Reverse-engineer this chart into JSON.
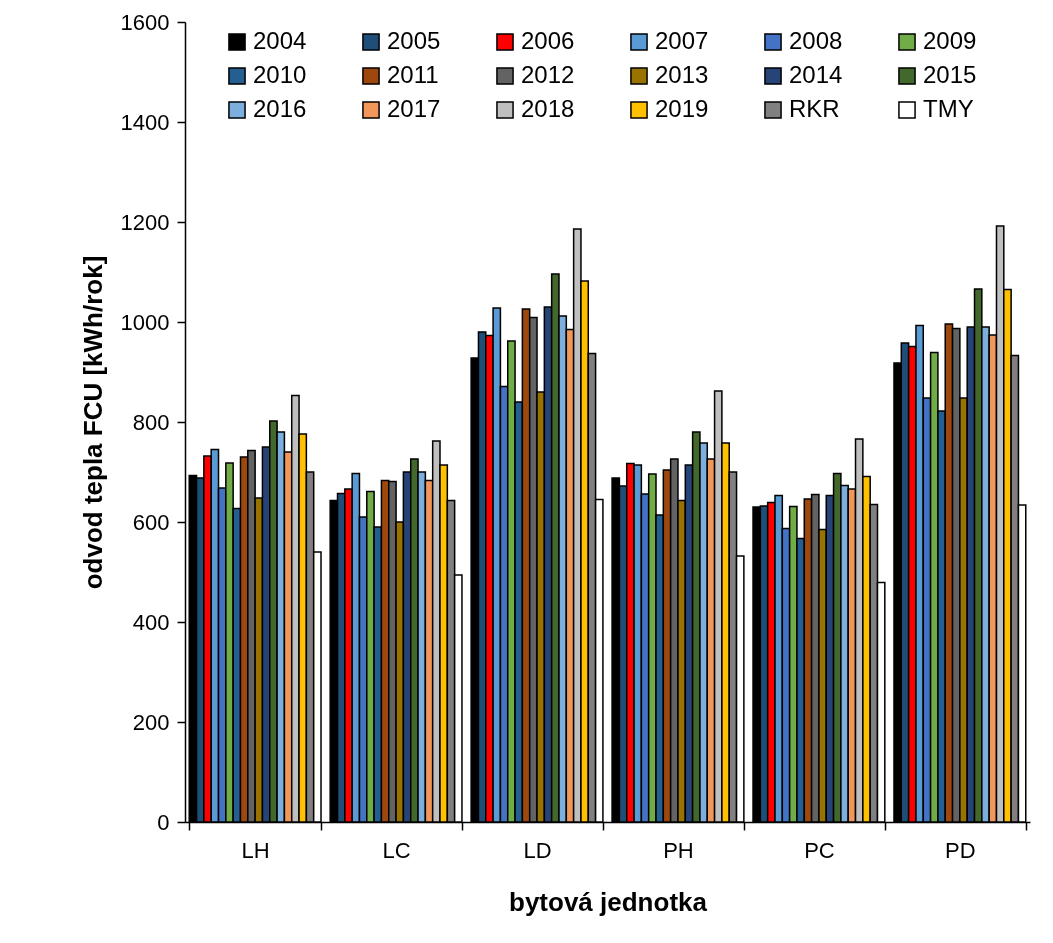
{
  "chart_data": {
    "type": "bar",
    "xlabel": "bytová jednotka",
    "ylabel": "odvod tepla FCU [kWh/rok]",
    "categories": [
      "LH",
      "LC",
      "LD",
      "PH",
      "PC",
      "PD"
    ],
    "ylim": [
      0,
      1600
    ],
    "yticks": [
      0,
      200,
      400,
      600,
      800,
      1000,
      1200,
      1400,
      1600
    ],
    "grid": false,
    "legend": "top",
    "series": [
      {
        "name": "2004",
        "color": "#000000",
        "values": [
          693,
          643,
          928,
          688,
          630,
          918
        ]
      },
      {
        "name": "2005",
        "color": "#1f4e79",
        "values": [
          688,
          657,
          980,
          672,
          632,
          958
        ]
      },
      {
        "name": "2006",
        "color": "#ff0000",
        "values": [
          732,
          666,
          973,
          717,
          639,
          951
        ]
      },
      {
        "name": "2007",
        "color": "#5b9bd5",
        "values": [
          745,
          697,
          1028,
          714,
          653,
          993
        ]
      },
      {
        "name": "2008",
        "color": "#4472c4",
        "values": [
          668,
          610,
          871,
          656,
          587,
          848
        ]
      },
      {
        "name": "2009",
        "color": "#70ad47",
        "values": [
          718,
          661,
          962,
          696,
          631,
          939
        ]
      },
      {
        "name": "2010",
        "color": "#255e91",
        "values": [
          627,
          590,
          840,
          614,
          567,
          822
        ]
      },
      {
        "name": "2011",
        "color": "#9e480e",
        "values": [
          730,
          683,
          1026,
          704,
          646,
          996
        ]
      },
      {
        "name": "2012",
        "color": "#636363",
        "values": [
          743,
          681,
          1009,
          726,
          655,
          987
        ]
      },
      {
        "name": "2013",
        "color": "#997300",
        "values": [
          648,
          600,
          860,
          643,
          585,
          848
        ]
      },
      {
        "name": "2014",
        "color": "#264478",
        "values": [
          750,
          700,
          1030,
          714,
          653,
          990
        ]
      },
      {
        "name": "2015",
        "color": "#43682b",
        "values": [
          802,
          726,
          1096,
          780,
          697,
          1066
        ]
      },
      {
        "name": "2016",
        "color": "#7cafdd",
        "values": [
          780,
          700,
          1012,
          758,
          673,
          990
        ]
      },
      {
        "name": "2017",
        "color": "#f1975a",
        "values": [
          740,
          683,
          985,
          726,
          666,
          974
        ]
      },
      {
        "name": "2018",
        "color": "#bfbfbf",
        "values": [
          853,
          762,
          1186,
          862,
          766,
          1192
        ]
      },
      {
        "name": "2019",
        "color": "#ffc000",
        "values": [
          776,
          714,
          1082,
          758,
          691,
          1065
        ]
      },
      {
        "name": "RKR",
        "color": "#808080",
        "values": [
          700,
          643,
          937,
          700,
          635,
          933
        ]
      },
      {
        "name": "TMY",
        "color": "#ffffff",
        "values": [
          540,
          494,
          645,
          532,
          479,
          634
        ]
      }
    ]
  }
}
